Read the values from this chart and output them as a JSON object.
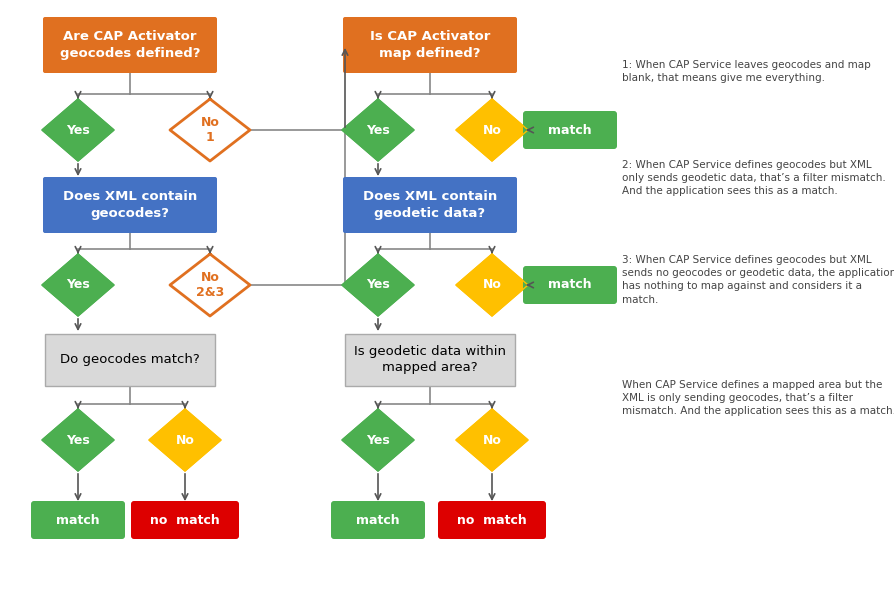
{
  "bg_color": "#ffffff",
  "orange_box": "#E07020",
  "blue_box": "#4472C4",
  "gray_box": "#D9D9D9",
  "green_diamond": "#4CAF50",
  "yellow_diamond": "#FFC000",
  "green_result": "#4CAF50",
  "red_result": "#DD0000",
  "white_text": "#ffffff",
  "black_text": "#000000",
  "dark_text": "#444444",
  "line_color": "#888888",
  "arrow_color": "#555555",
  "annotations": [
    "1: When CAP Service leaves geocodes and map\nblank, that means give me everything.",
    "2: When CAP Service defines geocodes but XML\nonly sends geodetic data, that’s a filter mismatch.\nAnd the application sees this as a match.",
    "3: When CAP Service defines geocodes but XML\nsends no geocodes or geodetic data, the application\nhas nothing to map against and considers it a\nmatch.",
    "When CAP Service defines a mapped area but the\nXML is only sending geocodes, that’s a filter\nmismatch. And the application sees this as a match."
  ]
}
